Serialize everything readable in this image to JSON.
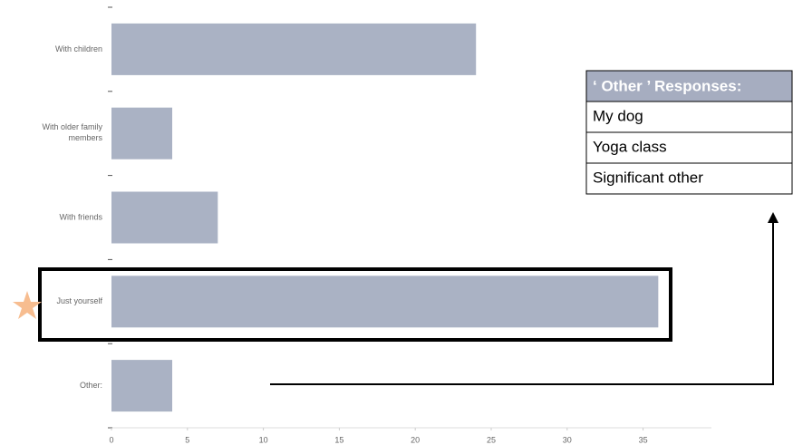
{
  "chart_data": {
    "type": "barh",
    "categories": [
      "With children",
      "With older family members",
      "With friends",
      "Just yourself",
      "Other:"
    ],
    "values": [
      24,
      4,
      7,
      36,
      4
    ],
    "color": "#aab2c4",
    "xlim": [
      0,
      39.5
    ],
    "xticks": [
      0,
      5,
      10,
      15,
      20,
      25,
      30,
      35
    ],
    "grid": false,
    "other_responses": {
      "title": "‘ Other ’ Responses:",
      "items": [
        "My dog",
        "Yoga class",
        "Significant other"
      ]
    }
  }
}
